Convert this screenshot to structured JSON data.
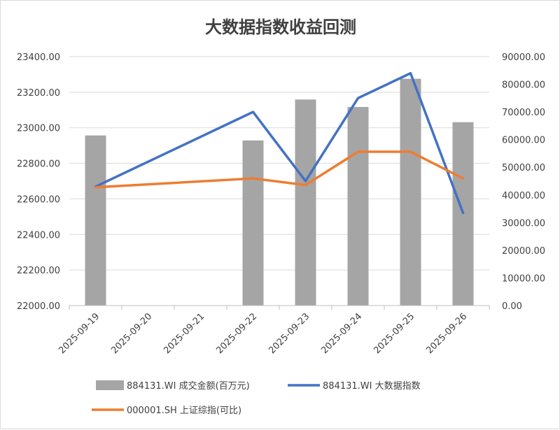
{
  "chart_data": {
    "type": "bar+line",
    "title": "大数据指数收益回测",
    "categories": [
      "2025-09-19",
      "2025-09-20",
      "2025-09-21",
      "2025-09-22",
      "2025-09-23",
      "2025-09-24",
      "2025-09-25",
      "2025-09-26"
    ],
    "left_axis": {
      "min": 22000,
      "max": 23400,
      "step": 200,
      "ticks": [
        "22000.00",
        "22200.00",
        "22400.00",
        "22600.00",
        "22800.00",
        "23000.00",
        "23200.00",
        "23400.00"
      ]
    },
    "right_axis": {
      "min": 0,
      "max": 90000,
      "step": 10000,
      "ticks": [
        "0.00",
        "10000.00",
        "20000.00",
        "30000.00",
        "40000.00",
        "50000.00",
        "60000.00",
        "70000.00",
        "80000.00",
        "90000.00"
      ]
    },
    "series": [
      {
        "name": "884131.WI 成交金额(百万元)",
        "kind": "bar",
        "axis": "right",
        "color": "#a5a5a5",
        "values": [
          61500,
          null,
          null,
          59700,
          74500,
          71800,
          82000,
          66300
        ]
      },
      {
        "name": "884131.WI 大数据指数",
        "kind": "line",
        "axis": "right",
        "color": "#4472c4",
        "values": [
          43000,
          null,
          null,
          70000,
          45000,
          75000,
          84000,
          33500
        ]
      },
      {
        "name": "000001.SH 上证综指(可比)",
        "kind": "line",
        "axis": "left",
        "color": "#ed7d31",
        "values": [
          22665,
          null,
          null,
          22715,
          22678,
          22865,
          22865,
          22715
        ]
      }
    ],
    "legend_position": "bottom",
    "grid": true
  }
}
